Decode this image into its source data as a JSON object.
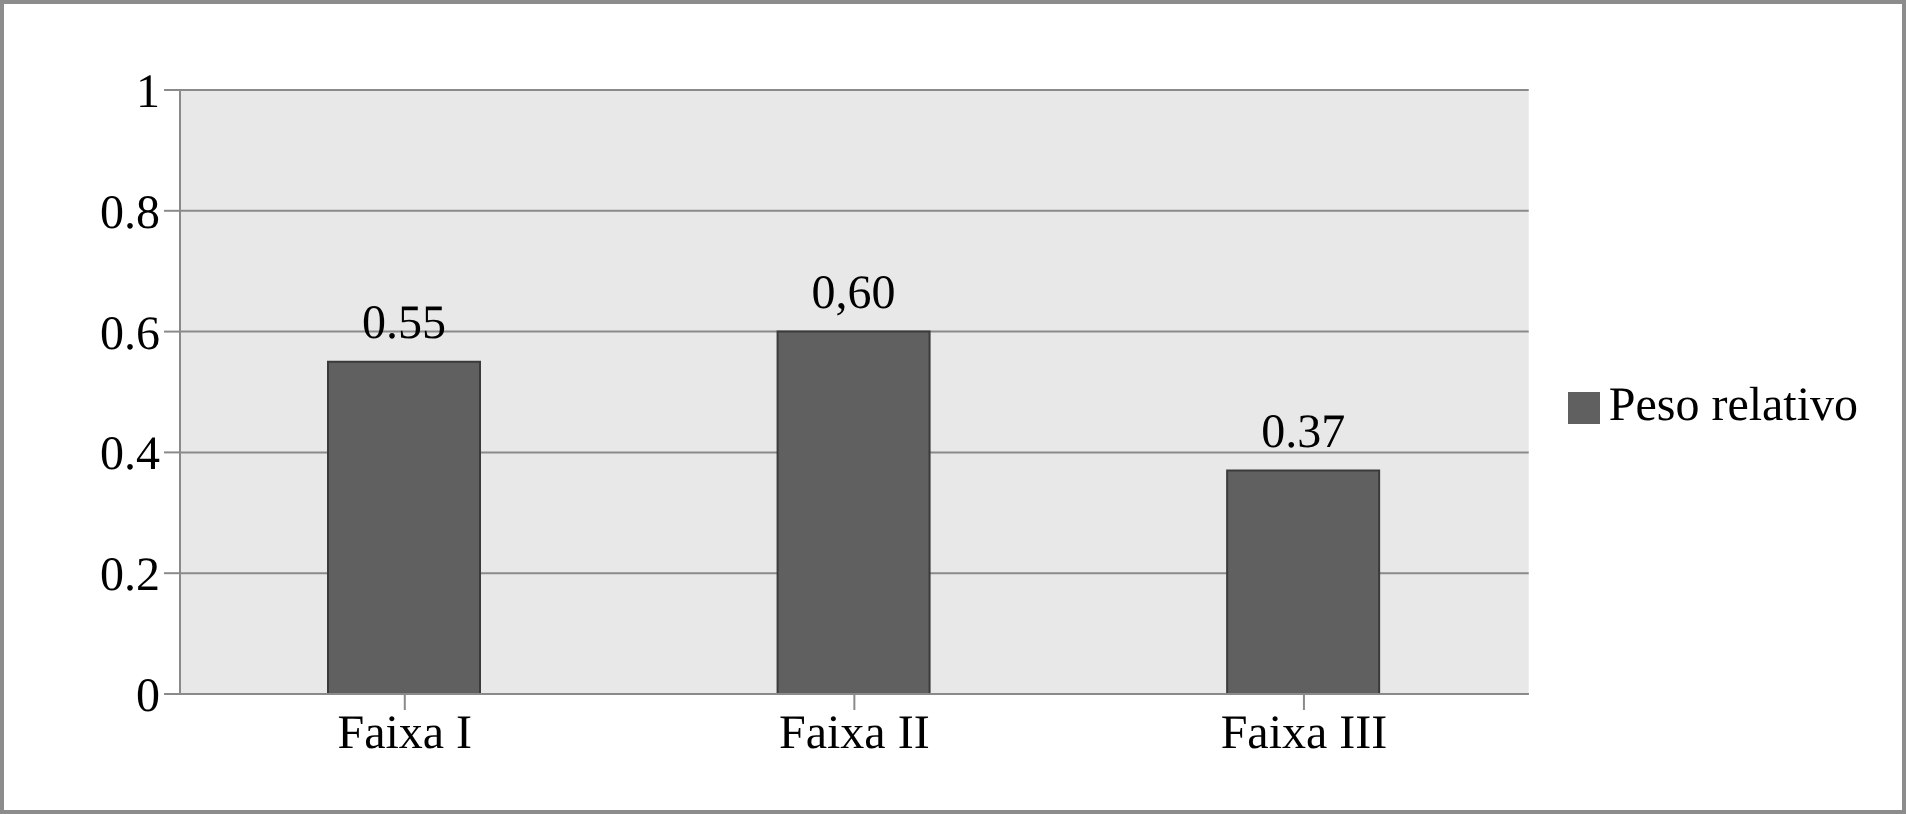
{
  "chart_data": {
    "type": "bar",
    "categories": [
      "Faixa I",
      "Faixa II",
      "Faixa III"
    ],
    "series": [
      {
        "name": "Peso relativo",
        "color": "#606060",
        "values": [
          0.55,
          0.6,
          0.37
        ],
        "value_labels": [
          "0.55",
          "0,60",
          "0.37"
        ]
      }
    ],
    "ylim": [
      0,
      1
    ],
    "yticks": [
      0,
      0.2,
      0.4,
      0.6,
      0.8,
      1
    ],
    "grid": "y",
    "legend": "right"
  }
}
